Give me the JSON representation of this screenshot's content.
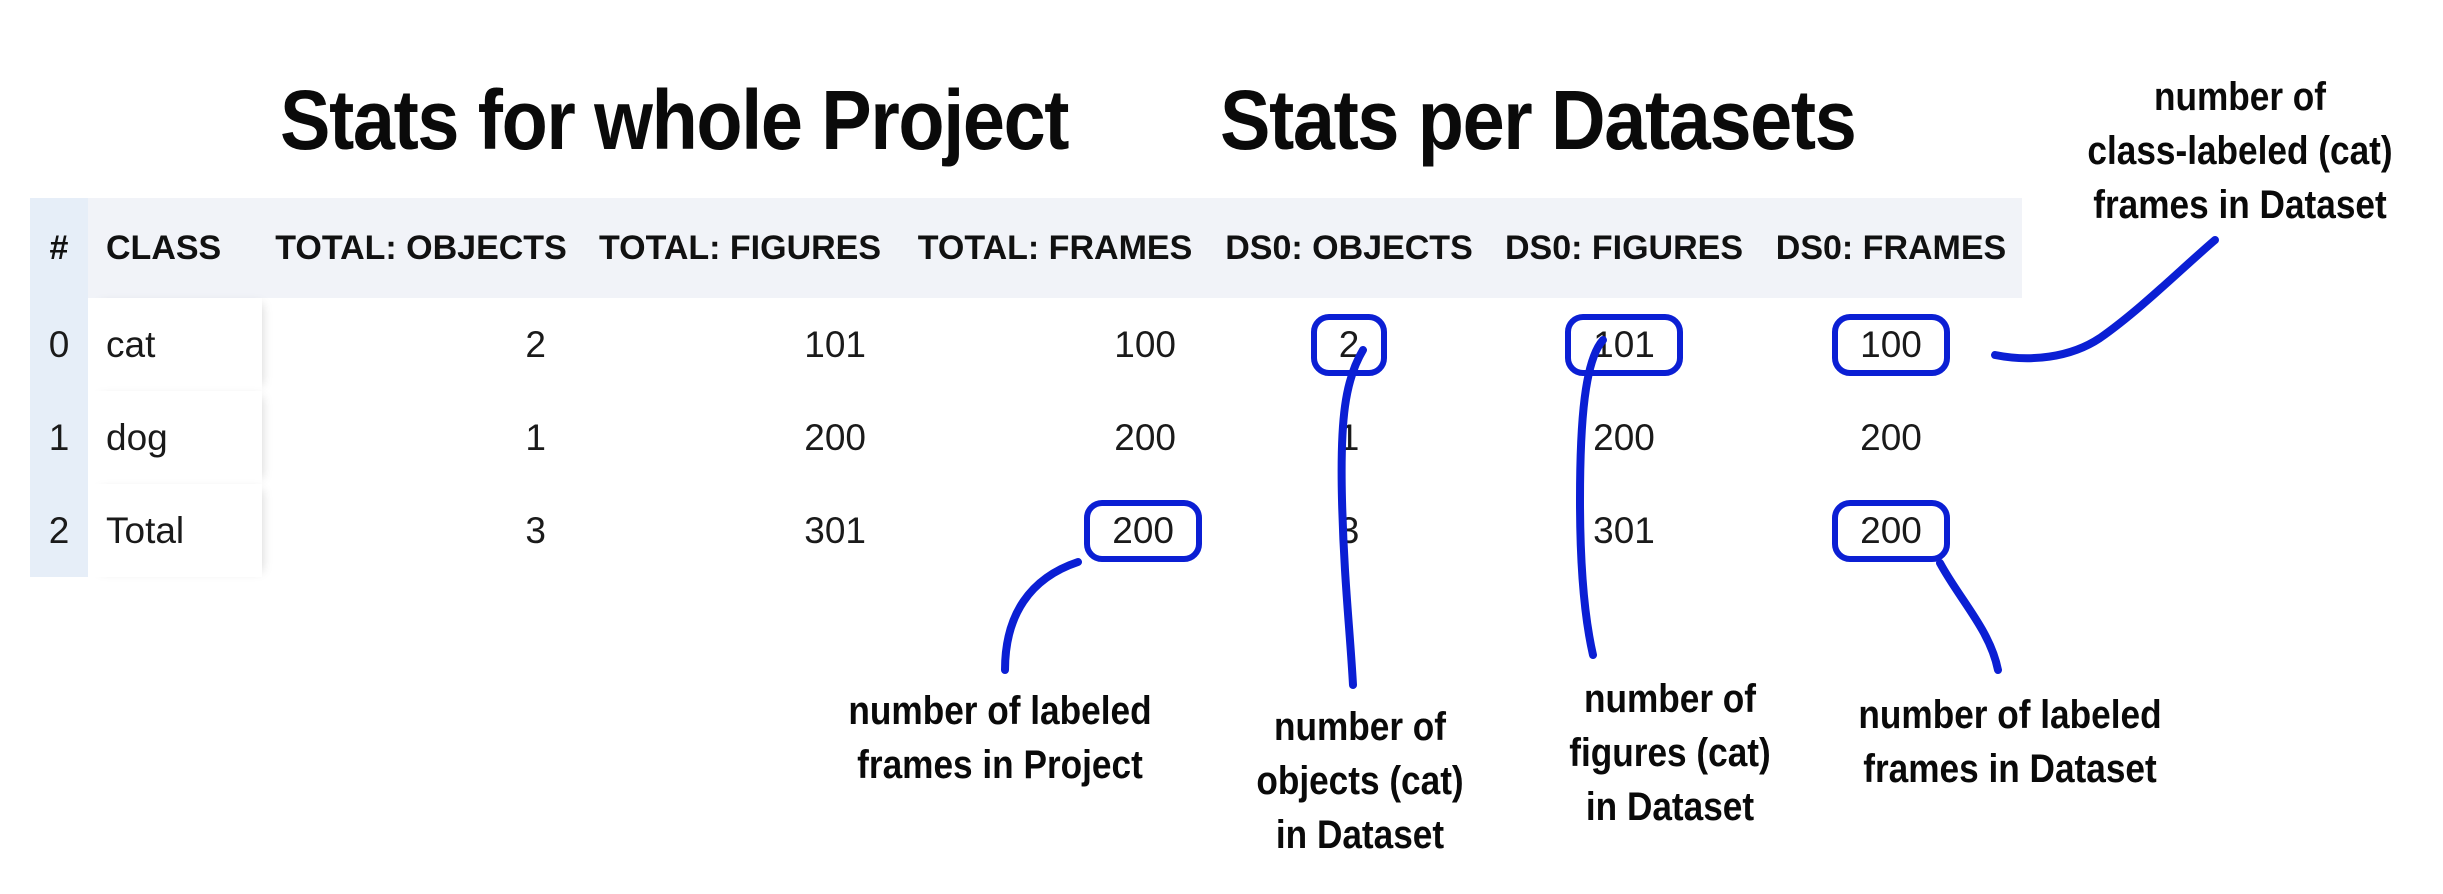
{
  "headings": {
    "project": "Stats for whole Project",
    "datasets": "Stats per Datasets"
  },
  "table": {
    "columns": [
      "#",
      "CLASS",
      "TOTAL: OBJECTS",
      "TOTAL: FIGURES",
      "TOTAL: FRAMES",
      "DS0: OBJECTS",
      "DS0: FIGURES",
      "DS0: FRAMES"
    ],
    "rows": [
      [
        "0",
        "cat",
        "2",
        "101",
        "100",
        "2",
        "101",
        "100"
      ],
      [
        "1",
        "dog",
        "1",
        "200",
        "200",
        "1",
        "200",
        "200"
      ],
      [
        "2",
        "Total",
        "3",
        "301",
        "200",
        "3",
        "301",
        "200"
      ]
    ]
  },
  "callouts": {
    "project_frames": [
      "number of labeled",
      "frames in Project"
    ],
    "dataset_objects": [
      "number of",
      "objects (cat)",
      "in Dataset"
    ],
    "dataset_figures": [
      "number of",
      "figures (cat)",
      "in Dataset"
    ],
    "dataset_frames": [
      "number of labeled",
      "frames in Dataset"
    ],
    "dataset_class_frames": [
      "number of",
      "class-labeled (cat)",
      "frames in Dataset"
    ]
  },
  "colors": {
    "highlight": "#0b1fd4",
    "header_background": "#f1f3f8",
    "index_background": "#e6eef8"
  }
}
